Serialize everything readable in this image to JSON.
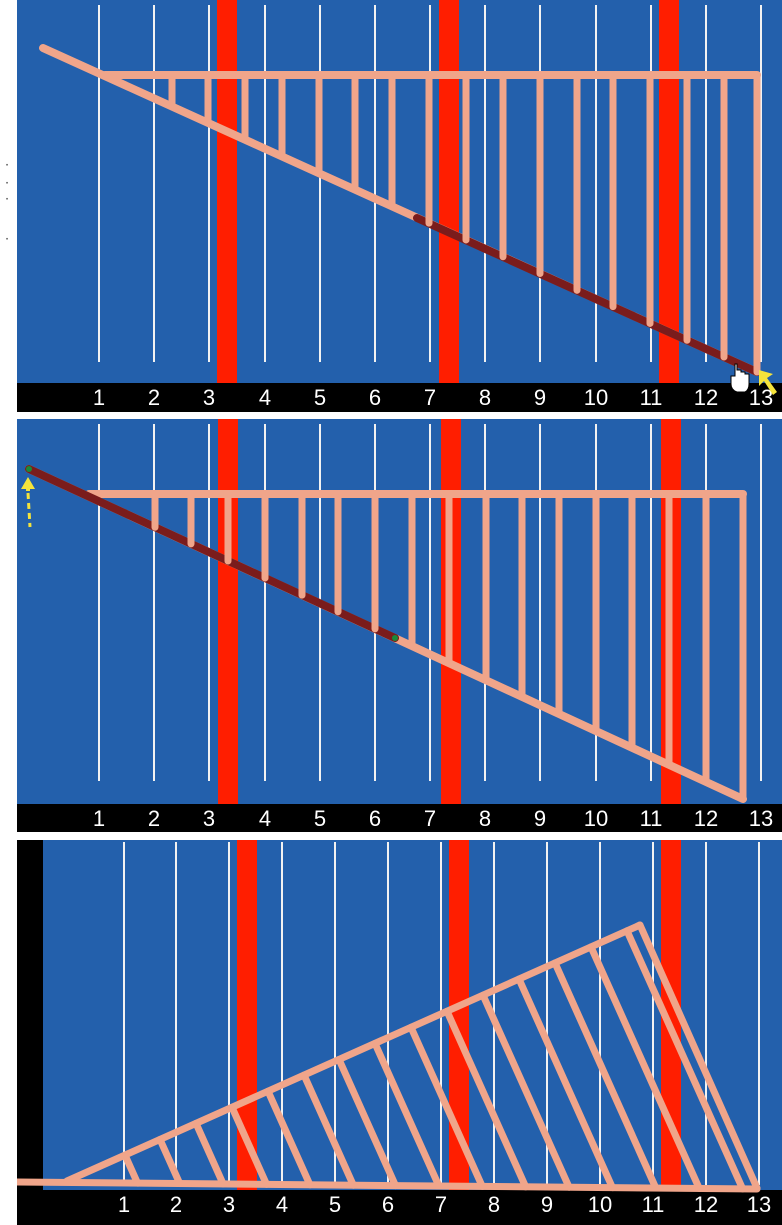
{
  "colors": {
    "background": "#2360ac",
    "grid_line": "#f2f2f2",
    "post": "#ff1e00",
    "frame": "#f0a58a",
    "frame_highlight": "#7a1c1c",
    "ruler": "#000000",
    "ruler_text": "#ffffff",
    "pointer": "#f5e43b"
  },
  "ruler_numbers": [
    "1",
    "2",
    "3",
    "4",
    "5",
    "6",
    "7",
    "8",
    "9",
    "10",
    "11",
    "12",
    "13"
  ],
  "panels": [
    {
      "id": "panel-1",
      "description": "lower chord selected, pointer at right end",
      "cursor_icon": "hand-cursor-icon",
      "arrow_icon": "yellow-arrow-icon"
    },
    {
      "id": "panel-2",
      "description": "upper-left chord segment selected, pointer at left end",
      "arrow_icon": "yellow-dashed-arrow-icon"
    },
    {
      "id": "panel-3",
      "description": "truss rotated into triangular position"
    }
  ]
}
